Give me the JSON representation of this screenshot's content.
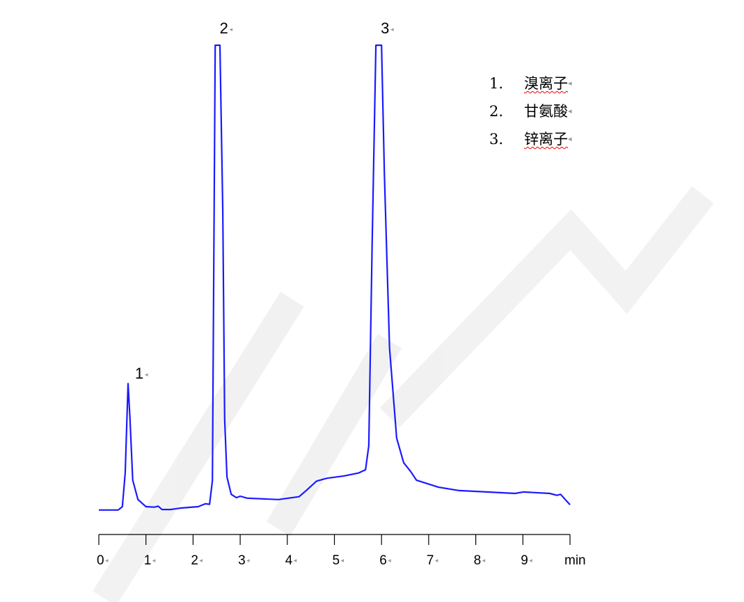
{
  "chart_data": {
    "type": "line",
    "title": "",
    "xlabel": "min",
    "ylabel": "",
    "xlim": [
      0,
      10
    ],
    "ylim": [
      0,
      100
    ],
    "grid": false,
    "x_ticks": [
      "0",
      "1",
      "2",
      "3",
      "4",
      "5",
      "6",
      "7",
      "8",
      "9"
    ],
    "x_unit_label": "min",
    "line_color": "#1a1aff",
    "series": [
      {
        "x": [
          0,
          0.41,
          0.5,
          0.56,
          0.62,
          0.66,
          0.72,
          0.83,
          1.0,
          1.18,
          1.26,
          1.34,
          1.52,
          1.74,
          2.11,
          2.26,
          2.35,
          2.41,
          2.47,
          2.57,
          2.63,
          2.67,
          2.72,
          2.81,
          2.92,
          3.0,
          3.15,
          3.81,
          4.25,
          4.4,
          4.62,
          4.84,
          5.21,
          5.51,
          5.66,
          5.73,
          5.8,
          5.88,
          6.0,
          6.06,
          6.17,
          6.32,
          6.47,
          6.62,
          6.74,
          7.21,
          7.65,
          8.24,
          8.83,
          9.01,
          9.57,
          9.72,
          9.8,
          9.9,
          10
        ],
        "y": [
          1.8,
          1.8,
          2.5,
          9.6,
          28.5,
          21.3,
          8.1,
          4,
          2.5,
          2.4,
          2.6,
          1.9,
          1.9,
          2.2,
          2.5,
          3.1,
          3,
          8,
          100,
          100,
          65,
          21,
          8.8,
          5.1,
          4.4,
          4.7,
          4.3,
          4,
          4.6,
          5.9,
          7.9,
          8.5,
          9,
          9.6,
          10.3,
          15.4,
          58,
          100,
          100,
          72.8,
          36,
          17,
          11.8,
          9.9,
          8.1,
          6.6,
          5.9,
          5.6,
          5.3,
          5.6,
          5.3,
          4.9,
          5.1,
          4,
          2.9
        ]
      }
    ],
    "peak_labels": [
      {
        "label": "1",
        "x": 0.62
      },
      {
        "label": "2",
        "x": 2.52
      },
      {
        "label": "3",
        "x": 5.94
      }
    ],
    "legend": {
      "placement": "top-right",
      "entries": [
        {
          "num": "1.",
          "name": "溴离子"
        },
        {
          "num": "2.",
          "name": "甘氨酸"
        },
        {
          "num": "3.",
          "name": "锌离子"
        }
      ]
    }
  }
}
